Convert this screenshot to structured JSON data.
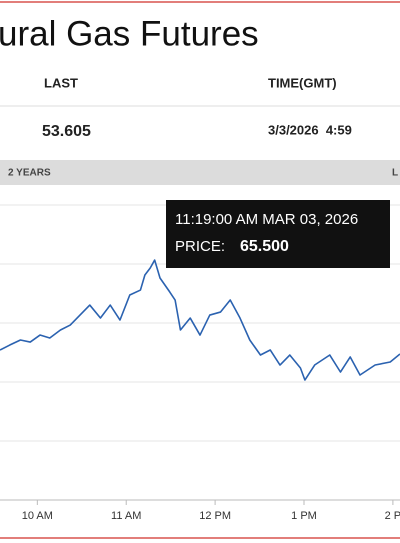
{
  "chart_data": {
    "type": "line",
    "title": "ural Gas Futures",
    "quote": {
      "headers": [
        "LAST",
        "TIME(GMT)"
      ],
      "last": 53.605,
      "time": "3/3/2026  4:59"
    },
    "range_bar": {
      "left": "2 YEARS",
      "right": "L"
    },
    "tooltip": {
      "time": "11:19:00 AM MAR 03, 2026",
      "label": "PRICE:",
      "value": "65.500"
    },
    "x": [
      9.58,
      9.69,
      9.81,
      9.92,
      10.03,
      10.14,
      10.26,
      10.37,
      10.48,
      10.59,
      10.71,
      10.82,
      10.93,
      11.04,
      11.16,
      11.21,
      11.27,
      11.32,
      11.38,
      11.49,
      11.55,
      11.61,
      11.72,
      11.83,
      11.94,
      12.06,
      12.17,
      12.28,
      12.39,
      12.51,
      12.62,
      12.73,
      12.84,
      12.96,
      13.01,
      13.12,
      13.29,
      13.41,
      13.52,
      13.63,
      13.8,
      13.97,
      14.08
    ],
    "series": [
      {
        "color": "#2b62b0",
        "values": [
          54.07,
          54.7,
          55.34,
          55.08,
          55.97,
          55.59,
          56.61,
          57.24,
          58.51,
          59.78,
          58.13,
          59.78,
          57.88,
          61.06,
          61.69,
          63.6,
          64.49,
          65.5,
          63.22,
          61.44,
          60.42,
          56.61,
          58.13,
          55.97,
          58.51,
          58.89,
          60.42,
          58.13,
          55.34,
          53.43,
          54.07,
          52.16,
          53.43,
          51.78,
          50.25,
          52.16,
          53.43,
          51.27,
          53.18,
          50.89,
          52.16,
          52.54,
          53.56
        ]
      }
    ],
    "xlim": [
      9.58,
      14.08
    ],
    "xticks": [
      {
        "value": 10,
        "label": "10 AM"
      },
      {
        "value": 11,
        "label": "11 AM"
      },
      {
        "value": 12,
        "label": "12 PM"
      },
      {
        "value": 13,
        "label": "1 PM"
      },
      {
        "value": 14,
        "label": "2 P"
      }
    ],
    "ylim": [
      35,
      72.5
    ],
    "grid": true
  }
}
